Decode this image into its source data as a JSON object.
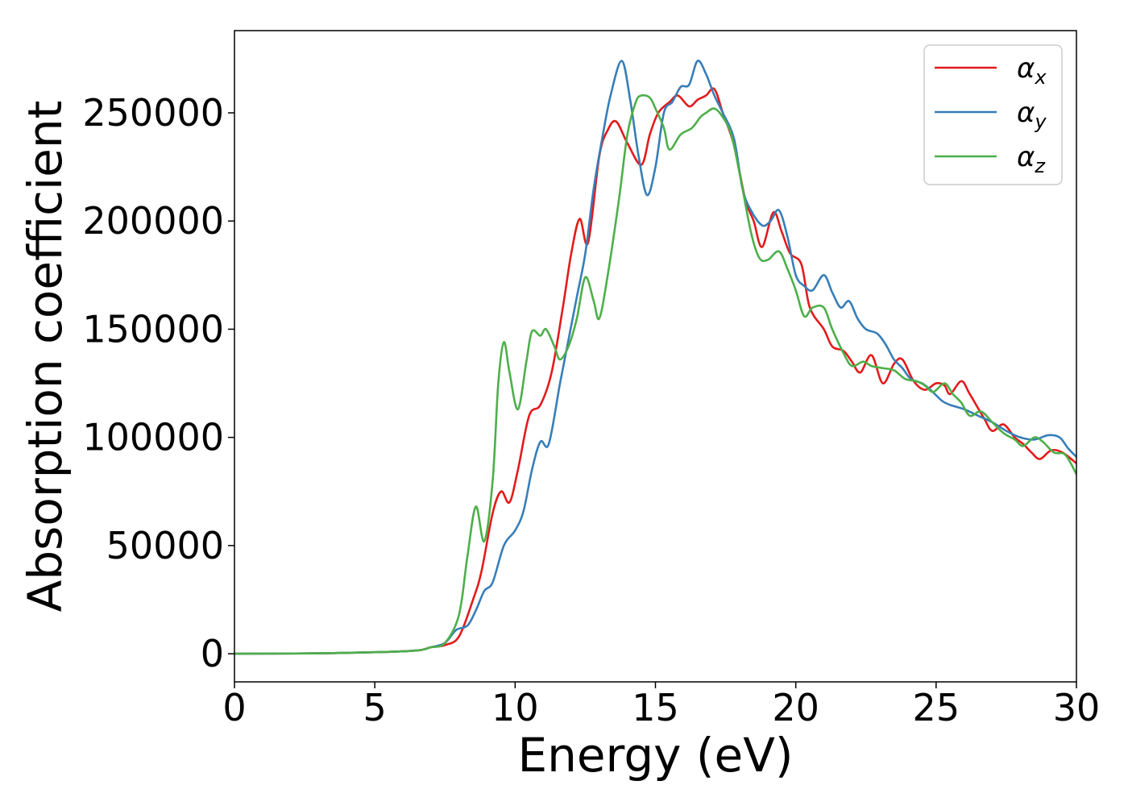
{
  "chart_data": {
    "type": "line",
    "title": "",
    "xlabel": "Energy (eV)",
    "ylabel": "Absorption coefficient",
    "xlim": [
      0,
      30
    ],
    "ylim": [
      -13000,
      288000
    ],
    "xticks": [
      0,
      5,
      10,
      15,
      20,
      25,
      30
    ],
    "xtick_labels": [
      "0",
      "5",
      "10",
      "15",
      "20",
      "25",
      "30"
    ],
    "yticks": [
      0,
      50000,
      100000,
      150000,
      200000,
      250000
    ],
    "ytick_labels": [
      "0",
      "50000",
      "100000",
      "150000",
      "200000",
      "250000"
    ],
    "grid": false,
    "legend": "top-right",
    "series": [
      {
        "name": "αx",
        "symbol": "α",
        "subscript": "x",
        "color": "#e41a1c",
        "points": [
          [
            0,
            0
          ],
          [
            3,
            200
          ],
          [
            5,
            700
          ],
          [
            6.5,
            1500
          ],
          [
            7,
            3000
          ],
          [
            7.5,
            4000
          ],
          [
            8,
            8000
          ],
          [
            8.5,
            25000
          ],
          [
            8.8,
            38000
          ],
          [
            9.2,
            65000
          ],
          [
            9.5,
            75000
          ],
          [
            9.8,
            70000
          ],
          [
            10.1,
            85000
          ],
          [
            10.5,
            110000
          ],
          [
            10.9,
            115000
          ],
          [
            11.3,
            130000
          ],
          [
            11.7,
            160000
          ],
          [
            12,
            185000
          ],
          [
            12.3,
            201000
          ],
          [
            12.6,
            190000
          ],
          [
            13,
            230000
          ],
          [
            13.3,
            242000
          ],
          [
            13.6,
            246000
          ],
          [
            14,
            236000
          ],
          [
            14.5,
            226000
          ],
          [
            14.8,
            240000
          ],
          [
            15.1,
            250000
          ],
          [
            15.5,
            255000
          ],
          [
            15.8,
            258000
          ],
          [
            16.2,
            253000
          ],
          [
            16.5,
            256000
          ],
          [
            16.8,
            258000
          ],
          [
            17.1,
            261000
          ],
          [
            17.4,
            250000
          ],
          [
            17.8,
            235000
          ],
          [
            18.2,
            210000
          ],
          [
            18.5,
            200000
          ],
          [
            18.8,
            188000
          ],
          [
            19.2,
            204000
          ],
          [
            19.5,
            195000
          ],
          [
            19.8,
            185000
          ],
          [
            20.2,
            180000
          ],
          [
            20.5,
            160000
          ],
          [
            21,
            150000
          ],
          [
            21.3,
            142000
          ],
          [
            21.7,
            140000
          ],
          [
            22,
            135000
          ],
          [
            22.3,
            130000
          ],
          [
            22.7,
            138000
          ],
          [
            23.1,
            125000
          ],
          [
            23.5,
            134000
          ],
          [
            23.8,
            136000
          ],
          [
            24.2,
            126000
          ],
          [
            24.6,
            122000
          ],
          [
            25,
            125000
          ],
          [
            25.3,
            124000
          ],
          [
            25.5,
            120000
          ],
          [
            25.9,
            126000
          ],
          [
            26.2,
            120000
          ],
          [
            26.7,
            109000
          ],
          [
            27,
            103000
          ],
          [
            27.4,
            106000
          ],
          [
            27.8,
            100000
          ],
          [
            28.1,
            97000
          ],
          [
            28.4,
            93000
          ],
          [
            28.7,
            90000
          ],
          [
            29.1,
            94000
          ],
          [
            29.5,
            93000
          ],
          [
            30,
            88000
          ]
        ]
      },
      {
        "name": "αy",
        "symbol": "α",
        "subscript": "y",
        "color": "#377eb8",
        "points": [
          [
            0,
            0
          ],
          [
            3,
            200
          ],
          [
            5,
            700
          ],
          [
            6.5,
            1500
          ],
          [
            7,
            3000
          ],
          [
            7.5,
            5000
          ],
          [
            7.9,
            11000
          ],
          [
            8.3,
            13000
          ],
          [
            8.6,
            20000
          ],
          [
            8.9,
            29000
          ],
          [
            9.2,
            33000
          ],
          [
            9.6,
            50000
          ],
          [
            10,
            57000
          ],
          [
            10.3,
            66000
          ],
          [
            10.6,
            85000
          ],
          [
            10.9,
            98000
          ],
          [
            11.2,
            97000
          ],
          [
            11.6,
            125000
          ],
          [
            11.9,
            145000
          ],
          [
            12.2,
            165000
          ],
          [
            12.5,
            185000
          ],
          [
            12.8,
            215000
          ],
          [
            13.1,
            238000
          ],
          [
            13.4,
            258000
          ],
          [
            13.8,
            274000
          ],
          [
            14.1,
            256000
          ],
          [
            14.4,
            230000
          ],
          [
            14.7,
            212000
          ],
          [
            15,
            225000
          ],
          [
            15.3,
            250000
          ],
          [
            15.6,
            255000
          ],
          [
            15.9,
            262000
          ],
          [
            16.2,
            263000
          ],
          [
            16.5,
            274000
          ],
          [
            16.8,
            268000
          ],
          [
            17.1,
            258000
          ],
          [
            17.4,
            250000
          ],
          [
            17.8,
            238000
          ],
          [
            18.1,
            215000
          ],
          [
            18.4,
            205000
          ],
          [
            18.8,
            198000
          ],
          [
            19.1,
            200000
          ],
          [
            19.4,
            205000
          ],
          [
            19.7,
            193000
          ],
          [
            20,
            175000
          ],
          [
            20.3,
            170000
          ],
          [
            20.6,
            168000
          ],
          [
            21,
            175000
          ],
          [
            21.3,
            167000
          ],
          [
            21.6,
            160000
          ],
          [
            21.9,
            163000
          ],
          [
            22.2,
            155000
          ],
          [
            22.5,
            150000
          ],
          [
            22.9,
            148000
          ],
          [
            23.2,
            143000
          ],
          [
            23.5,
            136000
          ],
          [
            23.8,
            132000
          ],
          [
            24.1,
            127000
          ],
          [
            24.5,
            125000
          ],
          [
            24.8,
            122000
          ],
          [
            25.2,
            117000
          ],
          [
            25.5,
            115000
          ],
          [
            26,
            113000
          ],
          [
            26.5,
            110000
          ],
          [
            27,
            107000
          ],
          [
            27.5,
            103000
          ],
          [
            28,
            100000
          ],
          [
            28.5,
            99000
          ],
          [
            29,
            101000
          ],
          [
            29.4,
            100000
          ],
          [
            29.7,
            95000
          ],
          [
            30,
            91000
          ]
        ]
      },
      {
        "name": "αz",
        "symbol": "α",
        "subscript": "z",
        "color": "#4daf4a",
        "points": [
          [
            0,
            0
          ],
          [
            3,
            200
          ],
          [
            5,
            700
          ],
          [
            6.5,
            1500
          ],
          [
            7,
            3000
          ],
          [
            7.5,
            5000
          ],
          [
            8,
            18000
          ],
          [
            8.3,
            45000
          ],
          [
            8.6,
            68000
          ],
          [
            8.9,
            52000
          ],
          [
            9.2,
            80000
          ],
          [
            9.4,
            125000
          ],
          [
            9.6,
            144000
          ],
          [
            9.8,
            130000
          ],
          [
            10.1,
            113000
          ],
          [
            10.4,
            135000
          ],
          [
            10.6,
            149000
          ],
          [
            10.9,
            147000
          ],
          [
            11.1,
            150000
          ],
          [
            11.4,
            142000
          ],
          [
            11.6,
            136000
          ],
          [
            11.9,
            142000
          ],
          [
            12.2,
            155000
          ],
          [
            12.5,
            174000
          ],
          [
            12.8,
            163000
          ],
          [
            13,
            155000
          ],
          [
            13.3,
            175000
          ],
          [
            13.7,
            210000
          ],
          [
            14,
            240000
          ],
          [
            14.3,
            255000
          ],
          [
            14.5,
            258000
          ],
          [
            14.8,
            257000
          ],
          [
            15,
            252000
          ],
          [
            15.3,
            243000
          ],
          [
            15.5,
            233000
          ],
          [
            15.9,
            240000
          ],
          [
            16.3,
            243000
          ],
          [
            16.6,
            248000
          ],
          [
            16.8,
            250000
          ],
          [
            17.1,
            252000
          ],
          [
            17.4,
            248000
          ],
          [
            17.7,
            240000
          ],
          [
            18,
            222000
          ],
          [
            18.4,
            195000
          ],
          [
            18.7,
            183000
          ],
          [
            19,
            182000
          ],
          [
            19.4,
            186000
          ],
          [
            19.7,
            178000
          ],
          [
            20,
            168000
          ],
          [
            20.3,
            156000
          ],
          [
            20.6,
            160000
          ],
          [
            21,
            160000
          ],
          [
            21.3,
            150000
          ],
          [
            21.7,
            139000
          ],
          [
            22,
            133000
          ],
          [
            22.4,
            135000
          ],
          [
            22.7,
            133000
          ],
          [
            23.1,
            132000
          ],
          [
            23.5,
            131000
          ],
          [
            23.9,
            127000
          ],
          [
            24.3,
            126000
          ],
          [
            24.6,
            124000
          ],
          [
            24.9,
            121000
          ],
          [
            25.3,
            125000
          ],
          [
            25.6,
            120000
          ],
          [
            25.9,
            116000
          ],
          [
            26.2,
            110000
          ],
          [
            26.6,
            112000
          ],
          [
            27,
            107000
          ],
          [
            27.4,
            102000
          ],
          [
            27.8,
            99000
          ],
          [
            28.1,
            96000
          ],
          [
            28.5,
            100000
          ],
          [
            28.8,
            98000
          ],
          [
            29.2,
            93000
          ],
          [
            29.6,
            92000
          ],
          [
            30,
            83000
          ]
        ]
      }
    ]
  }
}
